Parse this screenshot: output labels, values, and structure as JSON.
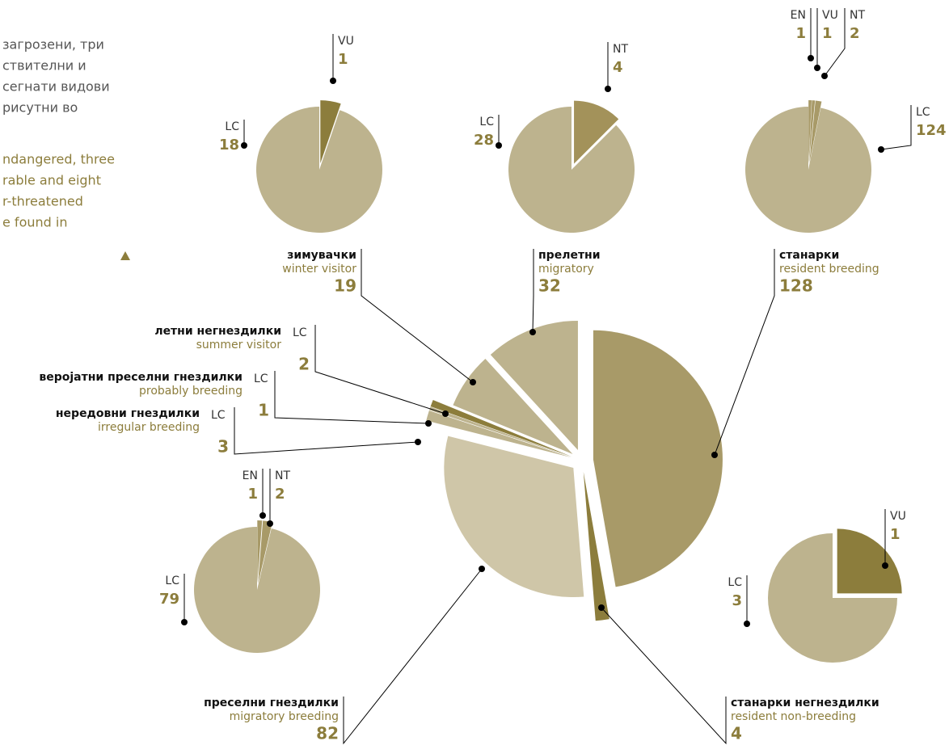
{
  "intro": {
    "mk": [
      "загрозени, три",
      "ствителни и",
      "сегнати видови",
      "рисутни во"
    ],
    "en": [
      "ndangered, three",
      "rable and eight",
      "r-threatened",
      "e found in"
    ]
  },
  "chart_data": [
    {
      "type": "pie",
      "categories": [
        "resident breeding",
        "resident non-breeding",
        "migratory breeding",
        "irregular breeding",
        "probably breeding",
        "summer visitor",
        "winter visitor",
        "migratory"
      ],
      "local_names": [
        "станарки",
        "станарки негнездилки",
        "преселни гнездилки",
        "нередовни гнездилки",
        "веројатни преселни гнездилки",
        "летни негнездилки",
        "зимувачки",
        "прелетни"
      ],
      "status": [
        null,
        null,
        null,
        "LC",
        "LC",
        "LC",
        null,
        null
      ],
      "values": [
        128,
        4,
        82,
        3,
        1,
        2,
        19,
        32
      ],
      "colors": [
        "#a89a68",
        "#8c7d3c",
        "#cfc6a8",
        "#bdb38e",
        "#bdb38e",
        "#8c7d3c",
        "#bdb38e",
        "#bdb38e"
      ]
    },
    {
      "type": "pie",
      "categories": [
        "VU",
        "LC"
      ],
      "values": [
        1,
        18
      ],
      "colors": [
        "#8c7d3c",
        "#bdb38e"
      ]
    },
    {
      "type": "pie",
      "categories": [
        "NT",
        "LC"
      ],
      "values": [
        4,
        28
      ],
      "colors": [
        "#a3925a",
        "#bdb38e"
      ]
    },
    {
      "type": "pie",
      "categories": [
        "EN",
        "VU",
        "NT",
        "LC"
      ],
      "values": [
        1,
        1,
        2,
        124
      ],
      "colors": [
        "#a89a68",
        "#a89a68",
        "#a89a68",
        "#bdb38e"
      ]
    },
    {
      "type": "pie",
      "categories": [
        "EN",
        "NT",
        "LC"
      ],
      "values": [
        1,
        2,
        79
      ],
      "colors": [
        "#a89a68",
        "#a89a68",
        "#bdb38e"
      ]
    },
    {
      "type": "pie",
      "categories": [
        "VU",
        "LC"
      ],
      "values": [
        1,
        3
      ],
      "colors": [
        "#8c7d3c",
        "#bdb38e"
      ]
    }
  ]
}
